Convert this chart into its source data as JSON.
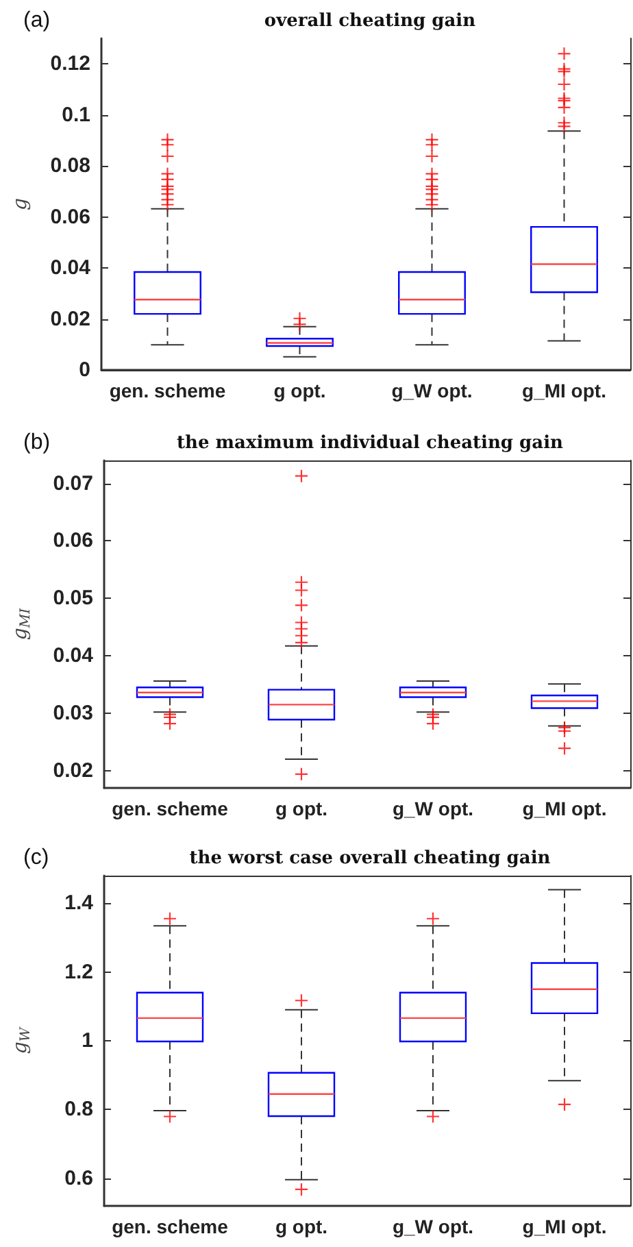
{
  "chart_data": [
    {
      "type": "box",
      "title": "overall cheating gain",
      "ylabel": "g",
      "annotations": [
        "(a)"
      ],
      "categories": [
        "gen. scheme",
        "g opt.",
        "g_W opt.",
        "g_MI opt."
      ],
      "ylim": [
        0,
        0.13
      ],
      "yticks": [
        0,
        0.02,
        0.04,
        0.06,
        0.08,
        0.1,
        0.12
      ],
      "grid": false,
      "marker": "cross",
      "series": [
        {
          "color": "#0000ff",
          "boxes": [
            {
              "low": 0.0099,
              "q1": 0.022,
              "median": 0.0276,
              "q3": 0.0384,
              "high": 0.0632,
              "outliers": [
                0.0648,
                0.0668,
                0.069,
                0.0708,
                0.072,
                0.0747,
                0.0769,
                0.0838,
                0.0883,
                0.0903
              ]
            },
            {
              "low": 0.0052,
              "q1": 0.0094,
              "median": 0.0106,
              "q3": 0.0123,
              "high": 0.017,
              "outliers": [
                0.0179,
                0.0202
              ]
            },
            {
              "low": 0.0099,
              "q1": 0.022,
              "median": 0.0276,
              "q3": 0.0384,
              "high": 0.0632,
              "outliers": [
                0.0648,
                0.0668,
                0.069,
                0.0708,
                0.072,
                0.0747,
                0.0769,
                0.0838,
                0.0883,
                0.0903
              ]
            },
            {
              "low": 0.0114,
              "q1": 0.0305,
              "median": 0.0415,
              "q3": 0.0561,
              "high": 0.0937,
              "outliers": [
                0.0955,
                0.0969,
                0.1029,
                0.1056,
                0.1065,
                0.112,
                0.117,
                0.118,
                0.124
              ]
            }
          ]
        }
      ]
    },
    {
      "type": "box",
      "title": "the maximum individual cheating gain",
      "ylabel": "g$_{MI}$",
      "annotations": [
        "(b)"
      ],
      "categories": [
        "gen. scheme",
        "g opt.",
        "g_W opt.",
        "g_MI opt."
      ],
      "ylim": [
        0.017,
        0.074
      ],
      "yticks": [
        0.02,
        0.03,
        0.04,
        0.05,
        0.06,
        0.07
      ],
      "grid": false,
      "marker": "cross",
      "series": [
        {
          "color": "#0000ff",
          "boxes": [
            {
              "low": 0.0302,
              "q1": 0.0328,
              "median": 0.0336,
              "q3": 0.0345,
              "high": 0.0356,
              "outliers": [
                0.0282,
                0.0293,
                0.0298
              ]
            },
            {
              "low": 0.022,
              "q1": 0.0289,
              "median": 0.0315,
              "q3": 0.0341,
              "high": 0.0417,
              "outliers": [
                0.0194,
                0.0423,
                0.0435,
                0.0447,
                0.0458,
                0.0488,
                0.0514,
                0.0528,
                0.0713
              ]
            },
            {
              "low": 0.0302,
              "q1": 0.0328,
              "median": 0.0336,
              "q3": 0.0345,
              "high": 0.0356,
              "outliers": [
                0.0282,
                0.0293,
                0.0298
              ]
            },
            {
              "low": 0.0278,
              "q1": 0.0309,
              "median": 0.0321,
              "q3": 0.0331,
              "high": 0.0351,
              "outliers": [
                0.0239,
                0.0269,
                0.0275
              ]
            }
          ]
        }
      ]
    },
    {
      "type": "box",
      "title": "the worst case overall cheating gain",
      "ylabel": "g$_{W}$",
      "annotations": [
        "(c)"
      ],
      "categories": [
        "gen. scheme",
        "g opt.",
        "g_W opt.",
        "g_MI opt."
      ],
      "ylim": [
        0.52,
        1.48
      ],
      "yticks": [
        0.6,
        0.8,
        1,
        1.2,
        1.4
      ],
      "grid": false,
      "marker": "cross",
      "series": [
        {
          "color": "#0000ff",
          "boxes": [
            {
              "low": 0.797,
              "q1": 0.998,
              "median": 1.066,
              "q3": 1.14,
              "high": 1.334,
              "outliers": [
                0.78,
                1.355
              ]
            },
            {
              "low": 0.596,
              "q1": 0.781,
              "median": 0.845,
              "q3": 0.907,
              "high": 1.09,
              "outliers": [
                0.568,
                1.117
              ]
            },
            {
              "low": 0.797,
              "q1": 0.998,
              "median": 1.066,
              "q3": 1.14,
              "high": 1.334,
              "outliers": [
                0.78,
                1.355
              ]
            },
            {
              "low": 0.884,
              "q1": 1.08,
              "median": 1.15,
              "q3": 1.226,
              "high": 1.439,
              "outliers": [
                0.815
              ]
            }
          ]
        }
      ]
    }
  ]
}
